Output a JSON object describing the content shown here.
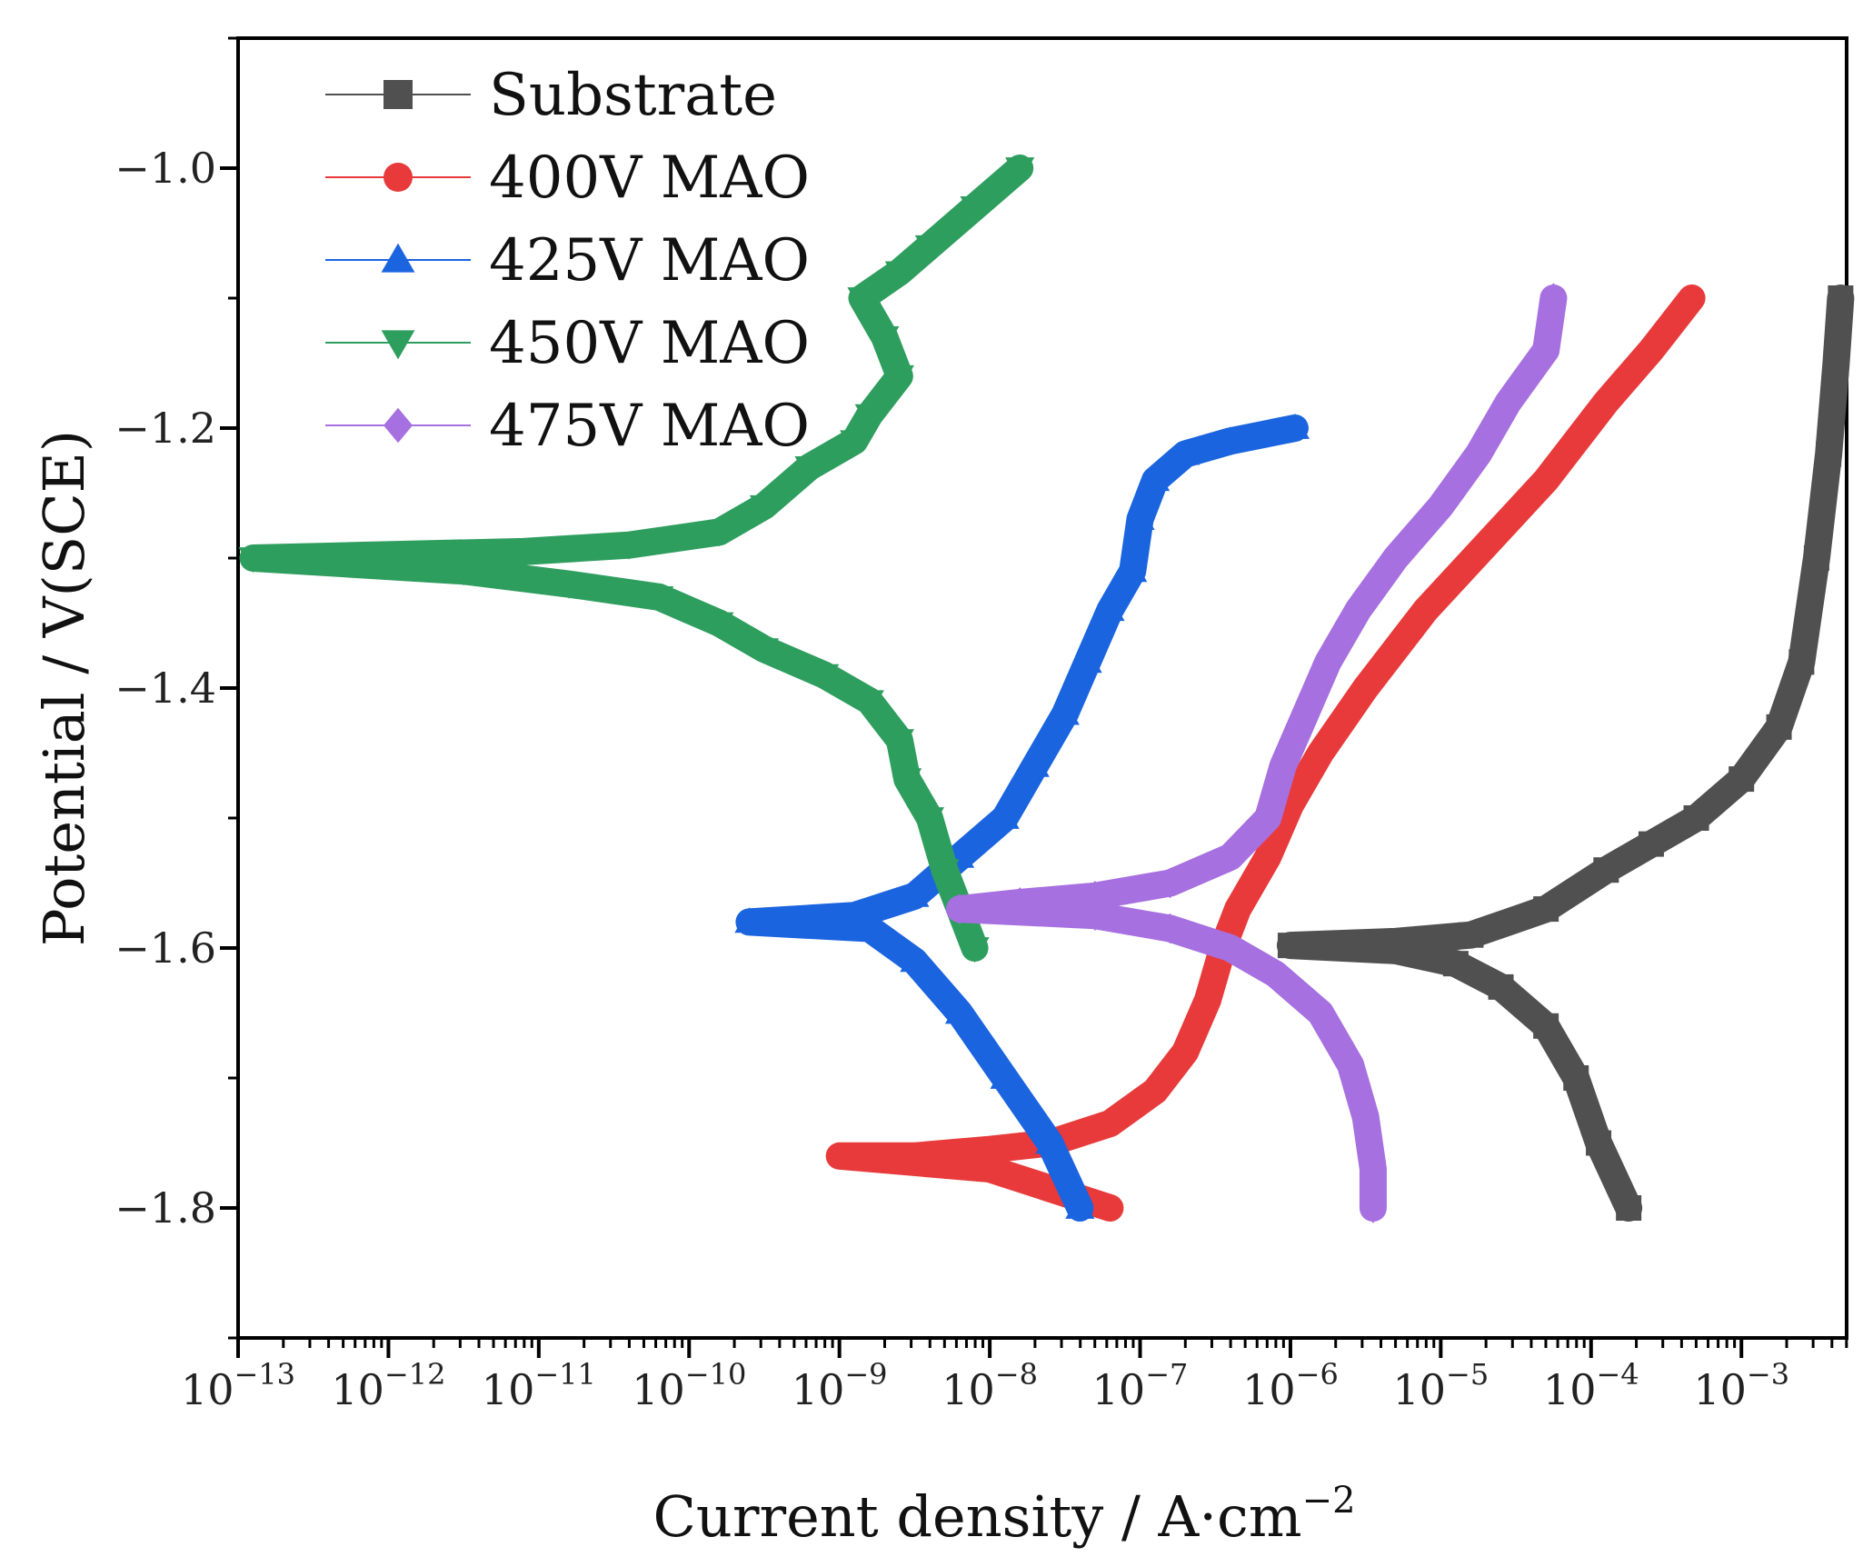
{
  "chart_data": {
    "type": "line",
    "title": "",
    "xlabel": "Current density / A·cm",
    "xlabel_exponent": "−2",
    "ylabel": "Potential / V(SCE)",
    "xscale": "log",
    "xlim_exp": [
      -13,
      -2.3
    ],
    "ylim": [
      -1.9,
      -0.9
    ],
    "x_ticks": [
      {
        "base": "10",
        "exp": "−13",
        "value": -13
      },
      {
        "base": "10",
        "exp": "−12",
        "value": -12
      },
      {
        "base": "10",
        "exp": "−11",
        "value": -11
      },
      {
        "base": "10",
        "exp": "−10",
        "value": -10
      },
      {
        "base": "10",
        "exp": "−9",
        "value": -9
      },
      {
        "base": "10",
        "exp": "−8",
        "value": -8
      },
      {
        "base": "10",
        "exp": "−7",
        "value": -7
      },
      {
        "base": "10",
        "exp": "−6",
        "value": -6
      },
      {
        "base": "10",
        "exp": "−5",
        "value": -5
      },
      {
        "base": "10",
        "exp": "−4",
        "value": -4
      },
      {
        "base": "10",
        "exp": "−3",
        "value": -3
      }
    ],
    "y_ticks": [
      {
        "label": "−1.0",
        "value": -1.0
      },
      {
        "label": "−1.2",
        "value": -1.2
      },
      {
        "label": "−1.4",
        "value": -1.4
      },
      {
        "label": "−1.6",
        "value": -1.6
      },
      {
        "label": "−1.8",
        "value": -1.8
      }
    ],
    "legend_position": "top-left",
    "series": [
      {
        "name": "Substrate",
        "color": "#505050",
        "marker": "square",
        "points": [
          [
            -2.34,
            -1.1
          ],
          [
            -2.37,
            -1.15
          ],
          [
            -2.42,
            -1.22
          ],
          [
            -2.5,
            -1.3
          ],
          [
            -2.6,
            -1.38
          ],
          [
            -2.75,
            -1.43
          ],
          [
            -3.0,
            -1.47
          ],
          [
            -3.3,
            -1.5
          ],
          [
            -3.6,
            -1.52
          ],
          [
            -3.9,
            -1.54
          ],
          [
            -4.3,
            -1.57
          ],
          [
            -4.8,
            -1.59
          ],
          [
            -5.3,
            -1.595
          ],
          [
            -6.0,
            -1.598
          ],
          [
            -5.3,
            -1.602
          ],
          [
            -4.9,
            -1.612
          ],
          [
            -4.6,
            -1.63
          ],
          [
            -4.3,
            -1.66
          ],
          [
            -4.1,
            -1.7
          ],
          [
            -3.95,
            -1.75
          ],
          [
            -3.75,
            -1.8
          ]
        ]
      },
      {
        "name": "400V MAO",
        "color": "#e83a3a",
        "marker": "circle",
        "points": [
          [
            -3.33,
            -1.1
          ],
          [
            -3.6,
            -1.14
          ],
          [
            -3.9,
            -1.18
          ],
          [
            -4.3,
            -1.24
          ],
          [
            -4.7,
            -1.29
          ],
          [
            -5.1,
            -1.34
          ],
          [
            -5.5,
            -1.4
          ],
          [
            -5.8,
            -1.45
          ],
          [
            -6.0,
            -1.49
          ],
          [
            -6.15,
            -1.53
          ],
          [
            -6.35,
            -1.57
          ],
          [
            -6.45,
            -1.6
          ],
          [
            -6.55,
            -1.64
          ],
          [
            -6.7,
            -1.68
          ],
          [
            -6.9,
            -1.71
          ],
          [
            -7.2,
            -1.735
          ],
          [
            -7.6,
            -1.75
          ],
          [
            -8.0,
            -1.755
          ],
          [
            -8.5,
            -1.76
          ],
          [
            -9.0,
            -1.76
          ],
          [
            -8.0,
            -1.77
          ],
          [
            -7.6,
            -1.785
          ],
          [
            -7.2,
            -1.8
          ]
        ]
      },
      {
        "name": "425V MAO",
        "color": "#1a64e0",
        "marker": "triangle-up",
        "points": [
          [
            -5.97,
            -1.2
          ],
          [
            -6.4,
            -1.21
          ],
          [
            -6.7,
            -1.22
          ],
          [
            -6.9,
            -1.24
          ],
          [
            -7.0,
            -1.27
          ],
          [
            -7.05,
            -1.31
          ],
          [
            -7.2,
            -1.34
          ],
          [
            -7.35,
            -1.38
          ],
          [
            -7.5,
            -1.42
          ],
          [
            -7.7,
            -1.46
          ],
          [
            -7.9,
            -1.5
          ],
          [
            -8.2,
            -1.53
          ],
          [
            -8.5,
            -1.56
          ],
          [
            -8.9,
            -1.575
          ],
          [
            -9.6,
            -1.58
          ],
          [
            -8.8,
            -1.585
          ],
          [
            -8.5,
            -1.61
          ],
          [
            -8.2,
            -1.65
          ],
          [
            -7.9,
            -1.7
          ],
          [
            -7.6,
            -1.75
          ],
          [
            -7.4,
            -1.8
          ]
        ]
      },
      {
        "name": "450V MAO",
        "color": "#2e9e5e",
        "marker": "triangle-down",
        "points": [
          [
            -7.8,
            -1.0
          ],
          [
            -8.1,
            -1.03
          ],
          [
            -8.4,
            -1.06
          ],
          [
            -8.6,
            -1.08
          ],
          [
            -8.85,
            -1.1
          ],
          [
            -8.7,
            -1.13
          ],
          [
            -8.6,
            -1.16
          ],
          [
            -8.8,
            -1.19
          ],
          [
            -8.9,
            -1.21
          ],
          [
            -9.2,
            -1.23
          ],
          [
            -9.5,
            -1.26
          ],
          [
            -9.8,
            -1.28
          ],
          [
            -10.4,
            -1.29
          ],
          [
            -11.1,
            -1.295
          ],
          [
            -12.2,
            -1.298
          ],
          [
            -12.9,
            -1.3
          ],
          [
            -11.5,
            -1.31
          ],
          [
            -10.8,
            -1.32
          ],
          [
            -10.2,
            -1.33
          ],
          [
            -9.8,
            -1.35
          ],
          [
            -9.5,
            -1.37
          ],
          [
            -9.1,
            -1.39
          ],
          [
            -8.8,
            -1.41
          ],
          [
            -8.6,
            -1.44
          ],
          [
            -8.55,
            -1.47
          ],
          [
            -8.4,
            -1.5
          ],
          [
            -8.3,
            -1.54
          ],
          [
            -8.2,
            -1.57
          ],
          [
            -8.1,
            -1.6
          ]
        ]
      },
      {
        "name": "475V MAO",
        "color": "#a670e0",
        "marker": "diamond",
        "points": [
          [
            -4.25,
            -1.1
          ],
          [
            -4.3,
            -1.14
          ],
          [
            -4.55,
            -1.18
          ],
          [
            -4.75,
            -1.22
          ],
          [
            -5.0,
            -1.26
          ],
          [
            -5.3,
            -1.3
          ],
          [
            -5.55,
            -1.34
          ],
          [
            -5.75,
            -1.38
          ],
          [
            -5.9,
            -1.42
          ],
          [
            -6.05,
            -1.46
          ],
          [
            -6.15,
            -1.5
          ],
          [
            -6.4,
            -1.53
          ],
          [
            -6.8,
            -1.55
          ],
          [
            -7.3,
            -1.56
          ],
          [
            -7.8,
            -1.565
          ],
          [
            -8.2,
            -1.57
          ],
          [
            -7.3,
            -1.575
          ],
          [
            -6.8,
            -1.585
          ],
          [
            -6.4,
            -1.6
          ],
          [
            -6.1,
            -1.62
          ],
          [
            -5.8,
            -1.65
          ],
          [
            -5.6,
            -1.69
          ],
          [
            -5.5,
            -1.73
          ],
          [
            -5.45,
            -1.77
          ],
          [
            -5.45,
            -1.8
          ]
        ]
      }
    ]
  }
}
